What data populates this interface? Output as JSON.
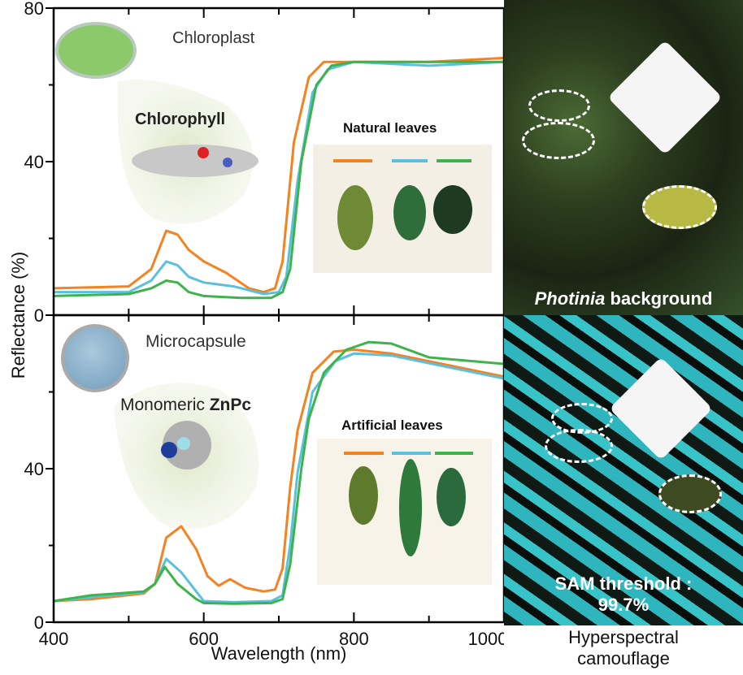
{
  "chart_data": [
    {
      "type": "line",
      "title": "",
      "xlabel": "Wavelength (nm)",
      "ylabel": "Reflectance (%)",
      "xlim": [
        400,
        1000
      ],
      "ylim": [
        0,
        80
      ],
      "xticks": [
        "400",
        "600",
        "800",
        "1000"
      ],
      "yticks": [
        "0",
        "40",
        "80"
      ],
      "annotations": {
        "organelle": "Chloroplast",
        "pigment": "Chlorophyll",
        "inset_title": "Natural leaves"
      },
      "series": [
        {
          "color": "#f58220",
          "x": [
            400,
            500,
            530,
            550,
            565,
            580,
            600,
            630,
            660,
            680,
            695,
            705,
            720,
            740,
            760,
            800,
            900,
            1000
          ],
          "y": [
            7,
            7.5,
            12,
            22,
            21,
            17,
            14,
            11,
            7,
            6,
            7,
            14,
            45,
            62,
            66,
            66,
            66,
            67
          ]
        },
        {
          "color": "#5bc0de",
          "x": [
            400,
            500,
            530,
            550,
            565,
            580,
            600,
            640,
            680,
            700,
            710,
            725,
            745,
            765,
            800,
            900,
            1000
          ],
          "y": [
            6,
            6,
            9,
            14,
            13,
            10,
            8.5,
            7.5,
            5.5,
            6,
            10,
            35,
            58,
            64,
            66,
            65,
            66
          ]
        },
        {
          "color": "#3cb44b",
          "x": [
            400,
            500,
            530,
            550,
            565,
            580,
            600,
            650,
            690,
            705,
            715,
            730,
            750,
            770,
            800,
            900,
            1000
          ],
          "y": [
            5,
            5.5,
            7,
            9,
            8.5,
            6,
            5,
            4.5,
            4.5,
            6,
            12,
            40,
            60,
            65,
            66,
            66,
            66
          ]
        }
      ]
    },
    {
      "type": "line",
      "title": "",
      "xlabel": "Wavelength (nm)",
      "ylabel": "Reflectance (%)",
      "xlim": [
        400,
        1000
      ],
      "ylim": [
        0,
        80
      ],
      "xticks": [
        "400",
        "600",
        "800",
        "1000"
      ],
      "yticks": [
        "0",
        "40"
      ],
      "annotations": {
        "organelle": "Microcapsule",
        "pigment_prefix": "Monomeric ",
        "pigment": "ZnPc",
        "inset_title": "Artificial leaves"
      },
      "series": [
        {
          "color": "#f58220",
          "x": [
            400,
            450,
            520,
            535,
            550,
            570,
            590,
            605,
            620,
            635,
            655,
            680,
            695,
            705,
            715,
            725,
            745,
            773,
            800,
            850,
            900,
            1000
          ],
          "y": [
            5.5,
            6,
            7.5,
            10,
            22,
            25,
            19,
            12,
            9.5,
            11.2,
            9,
            8,
            8.5,
            14,
            35,
            50,
            65,
            70.5,
            71,
            70,
            68,
            64
          ]
        },
        {
          "color": "#5bc0de",
          "x": [
            400,
            450,
            520,
            535,
            550,
            570,
            590,
            600,
            640,
            690,
            705,
            715,
            725,
            745,
            775,
            800,
            850,
            900,
            1000
          ],
          "y": [
            5.5,
            6.5,
            7.8,
            10,
            16.5,
            13,
            8,
            5.5,
            5.2,
            5.5,
            7,
            20,
            39,
            60,
            68,
            70,
            69.5,
            67.5,
            63.5
          ]
        },
        {
          "color": "#3cb44b",
          "x": [
            400,
            450,
            520,
            535,
            548,
            565,
            590,
            600,
            640,
            690,
            705,
            715,
            730,
            740,
            760,
            790,
            820,
            850,
            900,
            1000
          ],
          "y": [
            5.5,
            7,
            8,
            10,
            14.4,
            10,
            6,
            5,
            4.8,
            5,
            6,
            15,
            40,
            53,
            65,
            71,
            73,
            72.6,
            69,
            67.3
          ]
        }
      ]
    }
  ],
  "photos": {
    "top_label_italic": "Photinia",
    "top_label_rest": " background",
    "bottom_label_line1": "SAM threshold :",
    "bottom_label_line2": "99.7%",
    "caption_line1": "Hyperspectral",
    "caption_line2": "camouflage"
  }
}
